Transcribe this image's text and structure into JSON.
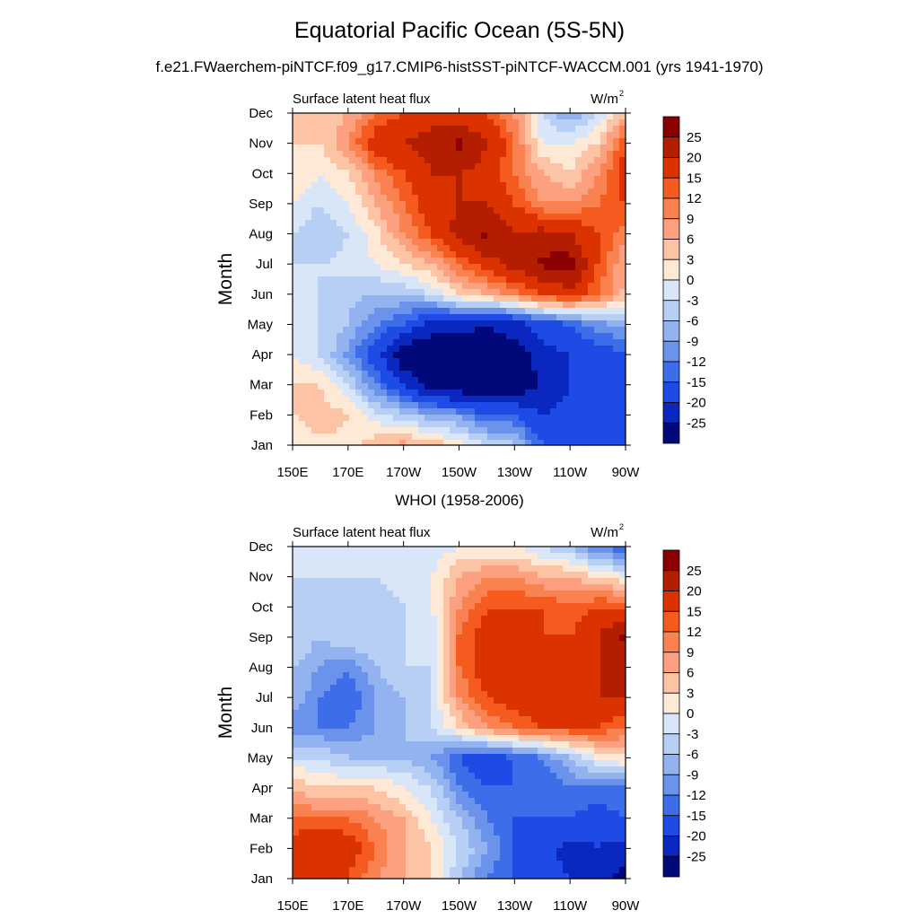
{
  "figure": {
    "title": "Equatorial Pacific Ocean (5S-5N)",
    "subtitle": "f.e21.FWaerchem-piNTCF.f09_g17.CMIP6-histSST-piNTCF-WACCM.001 (yrs 1941-1970)",
    "bottom_panel_title": "WHOI (1958-2006)"
  },
  "chart_data": [
    {
      "type": "heatmap",
      "title": "",
      "left_string": "Surface latent heat flux",
      "right_string": "W/m",
      "right_string_sup": "2",
      "xlabel": "",
      "ylabel": "Month",
      "x_ticks": [
        "150E",
        "170E",
        "170W",
        "150W",
        "130W",
        "110W",
        "90W"
      ],
      "y_ticks": [
        "Jan",
        "Feb",
        "Mar",
        "Apr",
        "May",
        "Jun",
        "Jul",
        "Aug",
        "Sep",
        "Oct",
        "Nov",
        "Dec"
      ],
      "colorbar_levels": [
        "25",
        "20",
        "15",
        "12",
        "9",
        "6",
        "3",
        "0",
        "-3",
        "-6",
        "-9",
        "-12",
        "-15",
        "-20",
        "-25"
      ],
      "colorbar_colors": [
        "#8b0000",
        "#b41e00",
        "#dc3200",
        "#f55a1e",
        "#fa8250",
        "#fca080",
        "#fdc3a5",
        "#fee8d6",
        "#d8e6f8",
        "#b7cff5",
        "#93b3f0",
        "#6b93ec",
        "#3d6de8",
        "#1e4be6",
        "#0a28c0",
        "#00087a"
      ],
      "x": [
        "150E",
        "160E",
        "170E",
        "180",
        "170W",
        "160W",
        "150W",
        "140W",
        "130W",
        "120W",
        "110W",
        "100W",
        "90W"
      ],
      "y": [
        "Jan",
        "Feb",
        "Mar",
        "Apr",
        "May",
        "Jun",
        "Jul",
        "Aug",
        "Sep",
        "Oct",
        "Nov",
        "Dec"
      ],
      "z": [
        [
          0,
          2,
          2,
          5,
          7,
          5,
          2,
          -3,
          -5,
          -15,
          -20,
          -20,
          -20
        ],
        [
          3,
          5,
          3,
          -2,
          -5,
          -8,
          -10,
          -15,
          -15,
          -20,
          -18,
          -20,
          -20
        ],
        [
          3,
          3,
          -3,
          -12,
          -20,
          -28,
          -30,
          -30,
          -30,
          -25,
          -20,
          -20,
          -18
        ],
        [
          0,
          -3,
          -10,
          -18,
          -30,
          -30,
          -32,
          -30,
          -28,
          -22,
          -20,
          -18,
          -15
        ],
        [
          -1,
          -3,
          -6,
          -12,
          -15,
          -22,
          -22,
          -25,
          -22,
          -18,
          -15,
          -10,
          -8
        ],
        [
          -2,
          -3,
          -5,
          -6,
          -6,
          -3,
          3,
          6,
          10,
          15,
          18,
          12,
          5
        ],
        [
          -3,
          -3,
          -2,
          0,
          3,
          6,
          12,
          18,
          22,
          26,
          28,
          15,
          6
        ],
        [
          -3,
          -6,
          -3,
          2,
          9,
          15,
          22,
          26,
          20,
          22,
          20,
          15,
          10
        ],
        [
          0,
          -3,
          0,
          6,
          12,
          18,
          20,
          20,
          15,
          9,
          9,
          12,
          15
        ],
        [
          3,
          0,
          3,
          10,
          15,
          20,
          20,
          18,
          12,
          6,
          3,
          9,
          18
        ],
        [
          3,
          3,
          9,
          18,
          20,
          22,
          26,
          20,
          12,
          0,
          0,
          3,
          15
        ],
        [
          3,
          3,
          6,
          12,
          15,
          18,
          15,
          15,
          9,
          -3,
          -9,
          -3,
          6
        ]
      ]
    },
    {
      "type": "heatmap",
      "title": "",
      "left_string": "Surface latent heat flux",
      "right_string": "W/m",
      "right_string_sup": "2",
      "xlabel": "",
      "ylabel": "Month",
      "x_ticks": [
        "150E",
        "170E",
        "170W",
        "150W",
        "130W",
        "110W",
        "90W"
      ],
      "y_ticks": [
        "Jan",
        "Feb",
        "Mar",
        "Apr",
        "May",
        "Jun",
        "Jul",
        "Aug",
        "Sep",
        "Oct",
        "Nov",
        "Dec"
      ],
      "colorbar_levels": [
        "25",
        "20",
        "15",
        "12",
        "9",
        "6",
        "3",
        "0",
        "-3",
        "-6",
        "-9",
        "-12",
        "-15",
        "-20",
        "-25"
      ],
      "colorbar_colors": [
        "#8b0000",
        "#b41e00",
        "#dc3200",
        "#f55a1e",
        "#fa8250",
        "#fca080",
        "#fdc3a5",
        "#fee8d6",
        "#d8e6f8",
        "#b7cff5",
        "#93b3f0",
        "#6b93ec",
        "#3d6de8",
        "#1e4be6",
        "#0a28c0",
        "#00087a"
      ],
      "x": [
        "150E",
        "160E",
        "170E",
        "180",
        "170W",
        "160W",
        "150W",
        "140W",
        "130W",
        "120W",
        "110W",
        "100W",
        "90W"
      ],
      "y": [
        "Jan",
        "Feb",
        "Mar",
        "Apr",
        "May",
        "Jun",
        "Jul",
        "Aug",
        "Sep",
        "Oct",
        "Nov",
        "Dec"
      ],
      "z": [
        [
          15,
          18,
          15,
          9,
          6,
          3,
          -6,
          -12,
          -15,
          -18,
          -20,
          -22,
          -28
        ],
        [
          18,
          20,
          18,
          12,
          6,
          3,
          -3,
          -9,
          -15,
          -18,
          -22,
          -20,
          -22
        ],
        [
          12,
          12,
          12,
          9,
          6,
          0,
          -6,
          -12,
          -15,
          -15,
          -15,
          -18,
          -15
        ],
        [
          6,
          3,
          3,
          3,
          0,
          -3,
          -12,
          -15,
          -15,
          -15,
          -12,
          -12,
          -12
        ],
        [
          -3,
          -3,
          -6,
          -6,
          -6,
          -9,
          -15,
          -18,
          -15,
          -12,
          -6,
          0,
          3
        ],
        [
          -12,
          -12,
          -12,
          -9,
          -6,
          -3,
          3,
          9,
          12,
          15,
          15,
          15,
          12
        ],
        [
          -6,
          -12,
          -15,
          -9,
          -6,
          -3,
          9,
          15,
          18,
          18,
          18,
          20,
          20
        ],
        [
          -6,
          -9,
          -12,
          -6,
          -3,
          -3,
          12,
          18,
          20,
          18,
          18,
          20,
          20
        ],
        [
          -3,
          -6,
          -3,
          -3,
          -3,
          -3,
          12,
          18,
          18,
          15,
          15,
          20,
          26
        ],
        [
          -3,
          -6,
          -6,
          -6,
          -3,
          0,
          9,
          15,
          15,
          15,
          12,
          15,
          15
        ],
        [
          -3,
          -3,
          -3,
          -3,
          0,
          0,
          6,
          9,
          9,
          6,
          6,
          3,
          0
        ],
        [
          -3,
          -3,
          -3,
          -3,
          -3,
          -3,
          0,
          0,
          0,
          -3,
          -6,
          -12,
          -15
        ]
      ]
    }
  ]
}
